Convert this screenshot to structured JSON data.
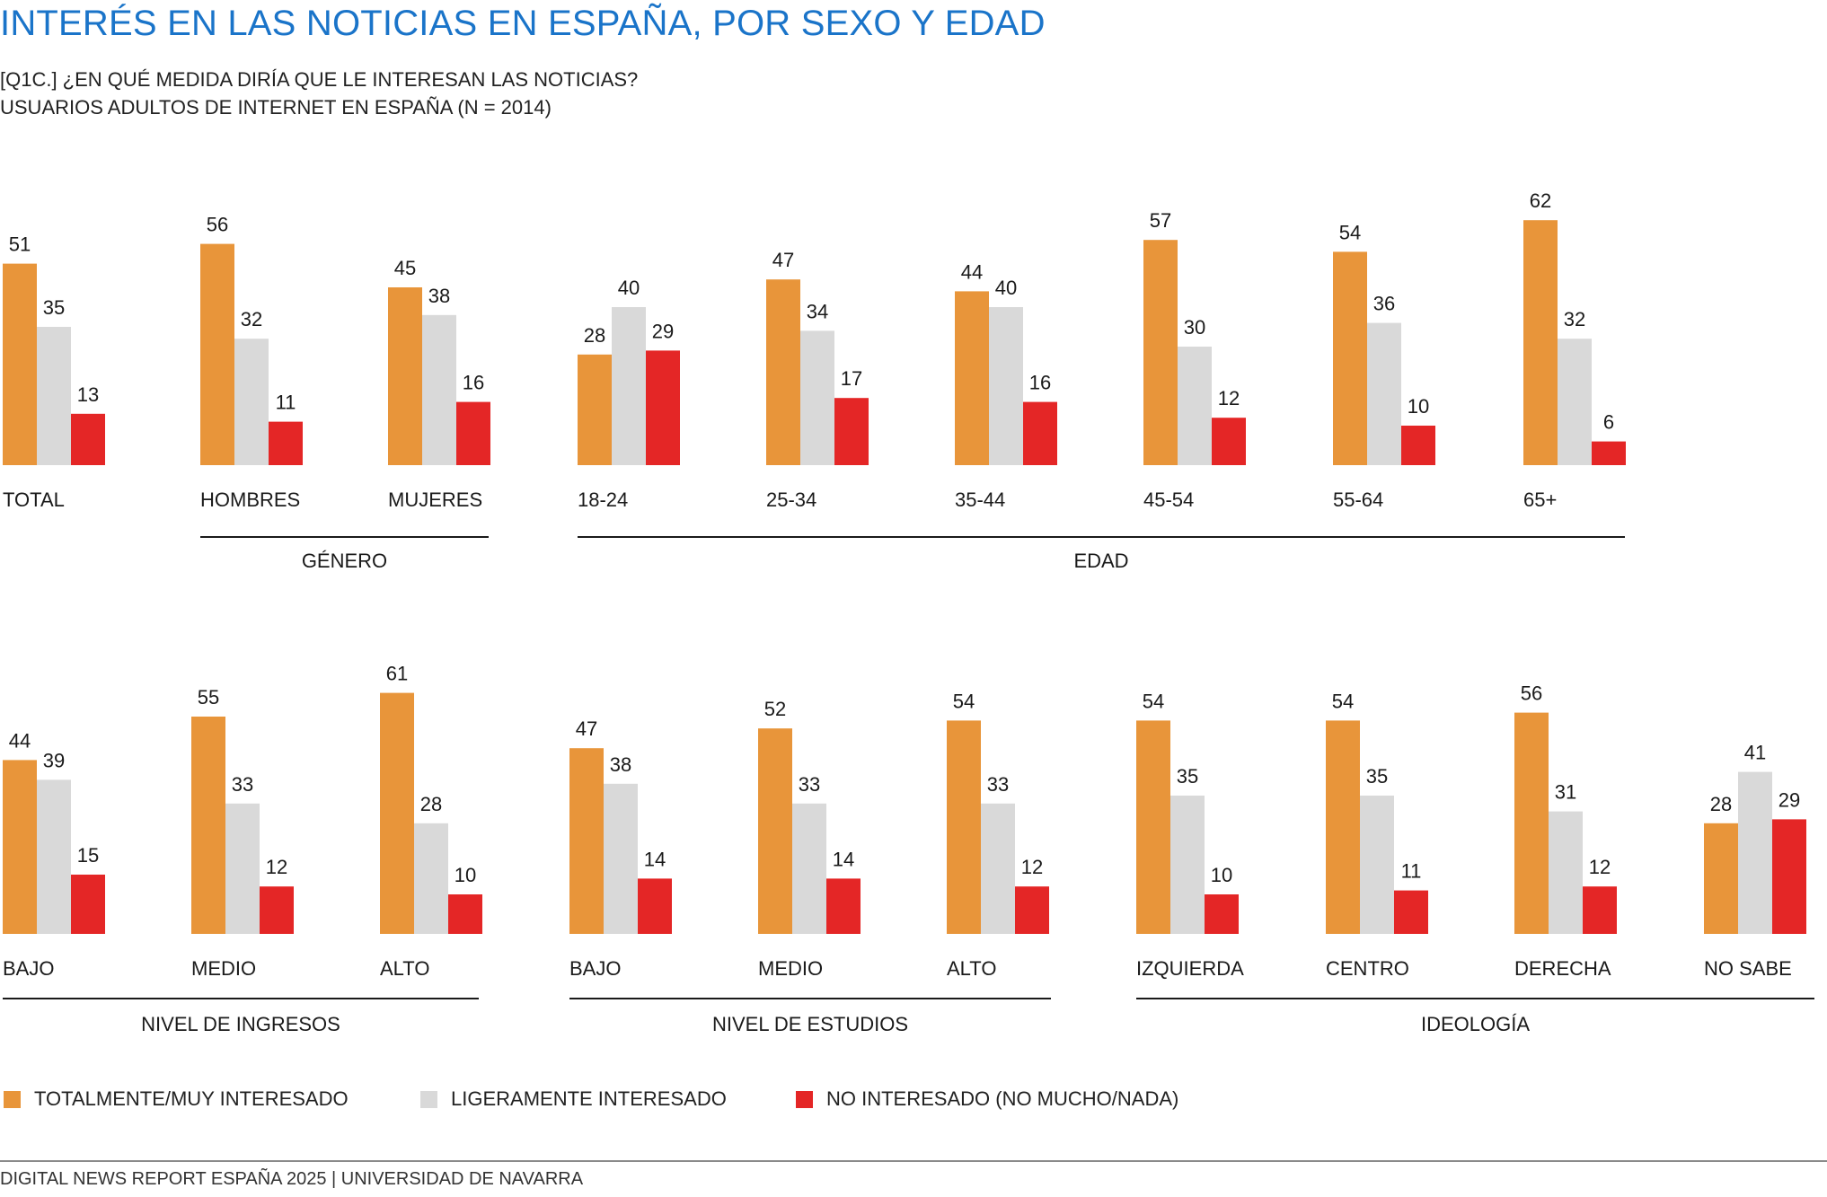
{
  "header": {
    "title": "INTERÉS EN LAS NOTICIAS EN ESPAÑA, POR SEXO Y EDAD",
    "question": "[Q1C.] ¿EN QUÉ MEDIDA DIRÍA QUE LE INTERESAN LAS NOTICIAS?",
    "base": "USUARIOS ADULTOS DE INTERNET EN ESPAÑA (N = 2014)"
  },
  "colors": {
    "totally_interested": "#e8953a",
    "slightly_interested": "#d9d9d9",
    "not_interested": "#e42626",
    "title": "#1a74c9"
  },
  "legend": [
    {
      "label": "TOTALMENTE/MUY INTERESADO",
      "color": "#e8953a"
    },
    {
      "label": "LIGERAMENTE INTERESADO",
      "color": "#d9d9d9"
    },
    {
      "label": "NO INTERESADO (NO MUCHO/NADA)",
      "color": "#e42626"
    }
  ],
  "footer": "DIGITAL NEWS REPORT ESPAÑA 2025 | UNIVERSIDAD DE NAVARRA",
  "chart_data": [
    {
      "type": "bar",
      "series_names": [
        "TOTALMENTE/MUY INTERESADO",
        "LIGERAMENTE INTERESADO",
        "NO INTERESADO (NO MUCHO/NADA)"
      ],
      "categories": [
        "TOTAL",
        "HOMBRES",
        "MUJERES",
        "18-24",
        "25-34",
        "35-44",
        "45-54",
        "55-64",
        "65+"
      ],
      "values": [
        [
          51,
          35,
          13
        ],
        [
          56,
          32,
          11
        ],
        [
          45,
          38,
          16
        ],
        [
          28,
          40,
          29
        ],
        [
          47,
          34,
          17
        ],
        [
          44,
          40,
          16
        ],
        [
          57,
          30,
          12
        ],
        [
          54,
          36,
          10
        ],
        [
          62,
          32,
          6
        ]
      ],
      "groups": [
        {
          "label": "GÉNERO",
          "categories": [
            "HOMBRES",
            "MUJERES"
          ]
        },
        {
          "label": "EDAD",
          "categories": [
            "18-24",
            "25-34",
            "35-44",
            "45-54",
            "55-64",
            "65+"
          ]
        }
      ],
      "unit": "%"
    },
    {
      "type": "bar",
      "series_names": [
        "TOTALMENTE/MUY INTERESADO",
        "LIGERAMENTE INTERESADO",
        "NO INTERESADO (NO MUCHO/NADA)"
      ],
      "categories": [
        "BAJO",
        "MEDIO",
        "ALTO",
        "BAJO",
        "MEDIO",
        "ALTO",
        "IZQUIERDA",
        "CENTRO",
        "DERECHA",
        "NO SABE"
      ],
      "values": [
        [
          44,
          39,
          15
        ],
        [
          55,
          33,
          12
        ],
        [
          61,
          28,
          10
        ],
        [
          47,
          38,
          14
        ],
        [
          52,
          33,
          14
        ],
        [
          54,
          33,
          12
        ],
        [
          54,
          35,
          10
        ],
        [
          54,
          35,
          11
        ],
        [
          56,
          31,
          12
        ],
        [
          28,
          41,
          29
        ]
      ],
      "groups": [
        {
          "label": "NIVEL DE INGRESOS",
          "categories": [
            "BAJO",
            "MEDIO",
            "ALTO"
          ]
        },
        {
          "label": "NIVEL DE ESTUDIOS",
          "categories": [
            "BAJO",
            "MEDIO",
            "ALTO"
          ]
        },
        {
          "label": "IDEOLOGÍA",
          "categories": [
            "IZQUIERDA",
            "CENTRO",
            "DERECHA",
            "NO SABE"
          ]
        }
      ],
      "unit": "%"
    }
  ]
}
